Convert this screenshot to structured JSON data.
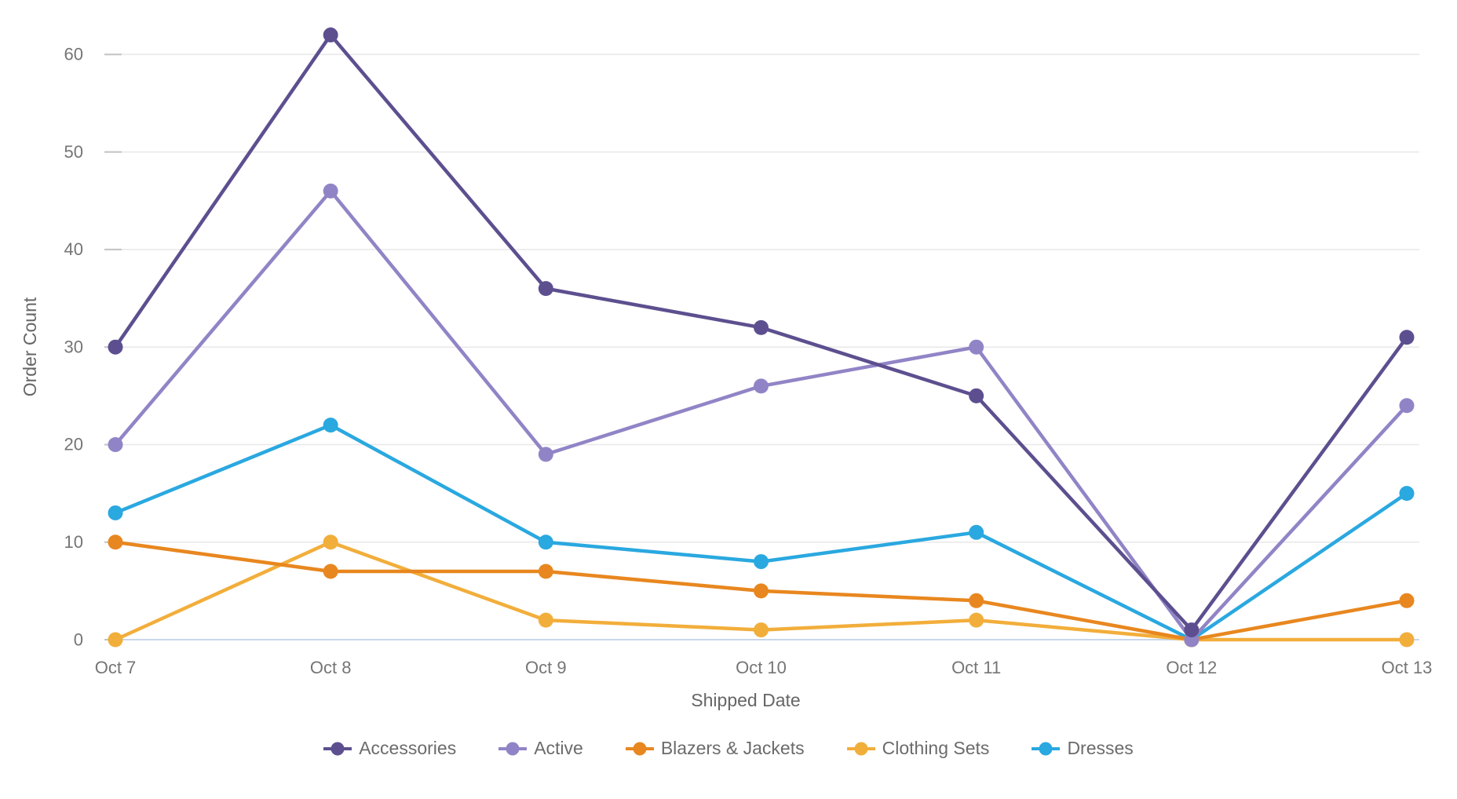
{
  "chart_data": {
    "type": "line",
    "title": "",
    "xlabel": "Shipped Date",
    "ylabel": "Order Count",
    "categories": [
      "Oct 7",
      "Oct 8",
      "Oct 9",
      "Oct 10",
      "Oct 11",
      "Oct 12",
      "Oct 13"
    ],
    "series": [
      {
        "name": "Accessories",
        "color": "#5D4F8F",
        "values": [
          30,
          62,
          36,
          32,
          25,
          1,
          31
        ]
      },
      {
        "name": "Active",
        "color": "#9184C6",
        "values": [
          20,
          46,
          19,
          26,
          30,
          0,
          24
        ]
      },
      {
        "name": "Blazers & Jackets",
        "color": "#E8871F",
        "values": [
          10,
          7,
          7,
          5,
          4,
          0,
          4
        ]
      },
      {
        "name": "Clothing Sets",
        "color": "#F2AE3B",
        "values": [
          0,
          10,
          2,
          1,
          2,
          0,
          0
        ]
      },
      {
        "name": "Dresses",
        "color": "#2AA8E0",
        "values": [
          13,
          22,
          10,
          8,
          11,
          0,
          15
        ]
      }
    ],
    "ylim": [
      0,
      65
    ],
    "yticks": [
      0,
      10,
      20,
      30,
      40,
      50,
      60
    ],
    "grid": true,
    "legend_position": "bottom",
    "style_colors": {
      "gridline": "#E8E8E8",
      "tick_mark": "#C2C2C2",
      "zero_axis_line": "#C9D7EA",
      "tick_label_text": "#757575",
      "axis_title_text": "#666666",
      "legend_text": "#6B6B6B"
    }
  }
}
